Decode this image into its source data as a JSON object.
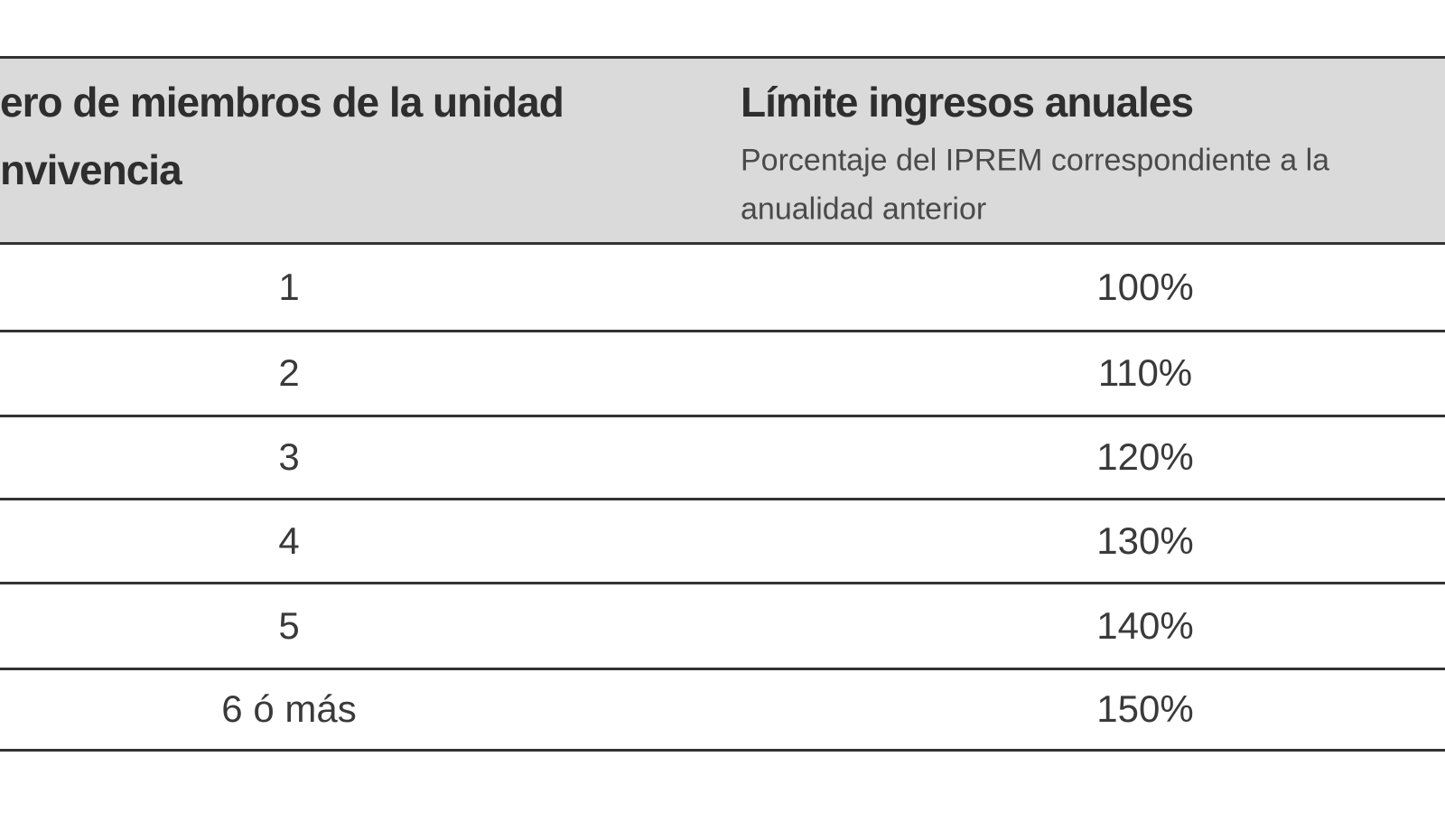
{
  "header": {
    "left_lines": [
      "ero de miembros de la unidad",
      "nvivencia"
    ],
    "right_title": "Límite ingresos anuales",
    "right_sub_lines": [
      "Porcentaje del IPREM correspondiente a la",
      "anualidad anterior"
    ]
  },
  "table": {
    "rows": [
      [
        "1",
        "100%"
      ],
      [
        "2",
        "110%"
      ],
      [
        "3",
        "120%"
      ],
      [
        "4",
        "130%"
      ],
      [
        "5",
        "140%"
      ],
      [
        "6 ó más",
        "150%"
      ]
    ]
  }
}
